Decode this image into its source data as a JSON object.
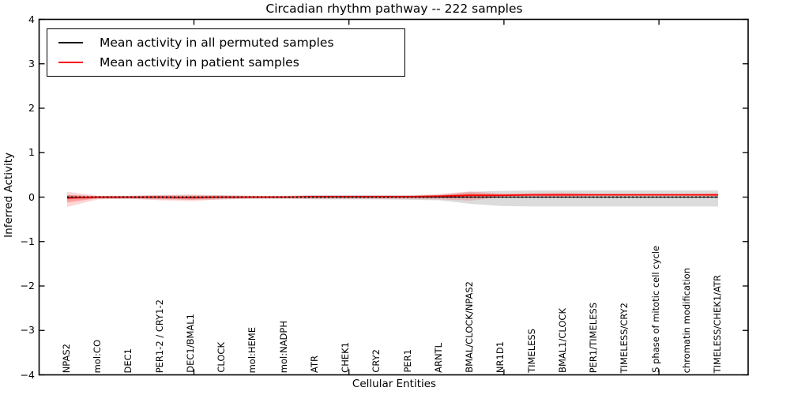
{
  "title": "Circadian rhythm pathway -- 222 samples",
  "legend": {
    "position": "upper left",
    "items": [
      {
        "label": "Mean activity in all permuted samples",
        "color": "#000000"
      },
      {
        "label": "Mean activity in patient samples",
        "color": "#ff0000"
      }
    ]
  },
  "chart_data": {
    "type": "line",
    "title": "Circadian rhythm pathway -- 222 samples",
    "xlabel": "Cellular Entities",
    "ylabel": "Inferred Activity",
    "ylim": [
      -4,
      4
    ],
    "yticks": [
      4,
      3,
      2,
      1,
      0,
      -1,
      -2,
      -3,
      -4
    ],
    "grid": false,
    "legend_position": "upper left",
    "band_colors": {
      "permuted": "rgba(128,128,128,0.28)",
      "patient_outer": "rgba(255,0,0,0.16)",
      "patient_inner": "rgba(255,0,0,0.25)"
    },
    "categories": [
      "NPAS2",
      "mol:CO",
      "DEC1",
      "PER1-2 / CRY1-2",
      "DEC1/BMAL1",
      "CLOCK",
      "mol:HEME",
      "mol:NADPH",
      "ATR",
      "CHEK1",
      "CRY2",
      "PER1",
      "ARNTL",
      "BMAL/CLOCK/NPAS2",
      "NR1D1",
      "TIMELESS",
      "BMAL1/CLOCK",
      "PER1/TIMELESS",
      "TIMELESS/CRY2",
      "S phase of mitotic cell cycle",
      "chromatin modification",
      "TIMELESS/CHEK1/ATR"
    ],
    "series": [
      {
        "name": "Mean activity in all permuted samples",
        "color": "#000000",
        "values": [
          0,
          0,
          0,
          0,
          0,
          0,
          0,
          0,
          0,
          0,
          0,
          0,
          0,
          0,
          0,
          0,
          0,
          0,
          0,
          0,
          0,
          0
        ],
        "band_low": [
          -0.05,
          -0.04,
          -0.04,
          -0.05,
          -0.06,
          -0.05,
          -0.04,
          -0.04,
          -0.05,
          -0.05,
          -0.05,
          -0.06,
          -0.07,
          -0.15,
          -0.2,
          -0.21,
          -0.21,
          -0.21,
          -0.21,
          -0.21,
          -0.21,
          -0.21
        ],
        "band_high": [
          0.04,
          0.03,
          0.03,
          0.04,
          0.04,
          0.04,
          0.03,
          0.03,
          0.04,
          0.04,
          0.04,
          0.04,
          0.05,
          0.12,
          0.14,
          0.15,
          0.15,
          0.15,
          0.15,
          0.15,
          0.15,
          0.15
        ]
      },
      {
        "name": "Mean activity in patient samples",
        "color": "#ff0000",
        "values": [
          -0.02,
          0,
          0,
          0,
          -0.01,
          0,
          0,
          0,
          0.01,
          0.01,
          0.01,
          0.01,
          0.02,
          0.04,
          0.04,
          0.05,
          0.05,
          0.05,
          0.05,
          0.05,
          0.05,
          0.05
        ],
        "band_low": [
          -0.22,
          -0.05,
          -0.04,
          -0.07,
          -0.09,
          -0.05,
          -0.03,
          -0.03,
          -0.04,
          -0.04,
          -0.04,
          -0.04,
          -0.05,
          -0.08,
          0,
          0.01,
          0,
          0.02,
          0.02,
          0.02,
          0.02,
          0.01
        ],
        "band_high": [
          0.12,
          0.03,
          0.03,
          0.05,
          0.06,
          0.04,
          0.03,
          0.03,
          0.04,
          0.04,
          0.04,
          0.04,
          0.07,
          0.13,
          0.08,
          0.09,
          0.1,
          0.08,
          0.08,
          0.08,
          0.08,
          0.09
        ]
      }
    ]
  }
}
